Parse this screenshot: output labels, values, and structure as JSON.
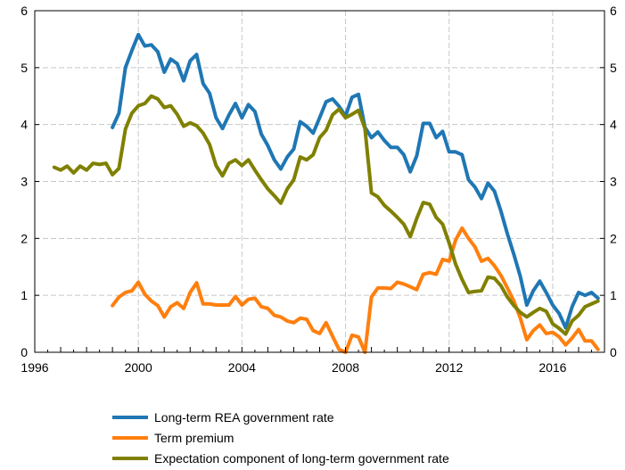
{
  "chart_data": {
    "type": "line",
    "title": "",
    "xlabel": "",
    "ylabel": "",
    "xlim": [
      1996,
      2018
    ],
    "ylim": [
      0,
      6
    ],
    "x_ticks": [
      1996,
      2000,
      2004,
      2008,
      2012,
      2016
    ],
    "x_tick_labels": [
      "1996",
      "2000",
      "2004",
      "2008",
      "2012",
      "2016"
    ],
    "y_ticks": [
      0,
      1,
      2,
      3,
      4,
      5,
      6
    ],
    "y_tick_labels": [
      "0",
      "1",
      "2",
      "3",
      "4",
      "5",
      "6"
    ],
    "grid": true,
    "legend_position": "bottom",
    "series": [
      {
        "name": "Long-term REA government rate",
        "color": "#1f77b4",
        "points": [
          [
            1999.0,
            3.95
          ],
          [
            1999.25,
            4.2
          ],
          [
            1999.5,
            5.0
          ],
          [
            1999.75,
            5.3
          ],
          [
            2000.0,
            5.58
          ],
          [
            2000.25,
            5.38
          ],
          [
            2000.5,
            5.4
          ],
          [
            2000.75,
            5.28
          ],
          [
            2001.0,
            4.92
          ],
          [
            2001.25,
            5.15
          ],
          [
            2001.5,
            5.07
          ],
          [
            2001.75,
            4.77
          ],
          [
            2002.0,
            5.12
          ],
          [
            2002.25,
            5.23
          ],
          [
            2002.5,
            4.72
          ],
          [
            2002.75,
            4.55
          ],
          [
            2003.0,
            4.12
          ],
          [
            2003.25,
            3.93
          ],
          [
            2003.5,
            4.17
          ],
          [
            2003.75,
            4.37
          ],
          [
            2004.0,
            4.12
          ],
          [
            2004.25,
            4.35
          ],
          [
            2004.5,
            4.23
          ],
          [
            2004.75,
            3.83
          ],
          [
            2005.0,
            3.63
          ],
          [
            2005.25,
            3.38
          ],
          [
            2005.5,
            3.22
          ],
          [
            2005.75,
            3.43
          ],
          [
            2006.0,
            3.57
          ],
          [
            2006.25,
            4.05
          ],
          [
            2006.5,
            3.97
          ],
          [
            2006.75,
            3.85
          ],
          [
            2007.0,
            4.12
          ],
          [
            2007.25,
            4.4
          ],
          [
            2007.5,
            4.45
          ],
          [
            2007.75,
            4.32
          ],
          [
            2008.0,
            4.15
          ],
          [
            2008.25,
            4.48
          ],
          [
            2008.5,
            4.53
          ],
          [
            2008.75,
            3.95
          ],
          [
            2009.0,
            3.77
          ],
          [
            2009.25,
            3.87
          ],
          [
            2009.5,
            3.72
          ],
          [
            2009.75,
            3.6
          ],
          [
            2010.0,
            3.6
          ],
          [
            2010.25,
            3.47
          ],
          [
            2010.5,
            3.17
          ],
          [
            2010.75,
            3.45
          ],
          [
            2011.0,
            4.02
          ],
          [
            2011.25,
            4.02
          ],
          [
            2011.5,
            3.77
          ],
          [
            2011.75,
            3.88
          ],
          [
            2012.0,
            3.52
          ],
          [
            2012.25,
            3.52
          ],
          [
            2012.5,
            3.47
          ],
          [
            2012.75,
            3.03
          ],
          [
            2013.0,
            2.9
          ],
          [
            2013.25,
            2.7
          ],
          [
            2013.5,
            2.97
          ],
          [
            2013.75,
            2.83
          ],
          [
            2014.0,
            2.48
          ],
          [
            2014.25,
            2.08
          ],
          [
            2014.5,
            1.72
          ],
          [
            2014.75,
            1.33
          ],
          [
            2015.0,
            0.83
          ],
          [
            2015.25,
            1.08
          ],
          [
            2015.5,
            1.25
          ],
          [
            2015.75,
            1.05
          ],
          [
            2016.0,
            0.83
          ],
          [
            2016.25,
            0.68
          ],
          [
            2016.5,
            0.43
          ],
          [
            2016.75,
            0.8
          ],
          [
            2017.0,
            1.05
          ],
          [
            2017.25,
            1.0
          ],
          [
            2017.5,
            1.05
          ],
          [
            2017.75,
            0.95
          ]
        ]
      },
      {
        "name": "Term premium",
        "color": "#ff7f0e",
        "points": [
          [
            1999.0,
            0.82
          ],
          [
            1999.25,
            0.97
          ],
          [
            1999.5,
            1.05
          ],
          [
            1999.75,
            1.08
          ],
          [
            2000.0,
            1.23
          ],
          [
            2000.25,
            1.02
          ],
          [
            2000.5,
            0.9
          ],
          [
            2000.75,
            0.82
          ],
          [
            2001.0,
            0.62
          ],
          [
            2001.25,
            0.8
          ],
          [
            2001.5,
            0.87
          ],
          [
            2001.75,
            0.77
          ],
          [
            2002.0,
            1.05
          ],
          [
            2002.25,
            1.22
          ],
          [
            2002.5,
            0.85
          ],
          [
            2002.75,
            0.85
          ],
          [
            2003.0,
            0.83
          ],
          [
            2003.25,
            0.83
          ],
          [
            2003.5,
            0.83
          ],
          [
            2003.75,
            0.98
          ],
          [
            2004.0,
            0.83
          ],
          [
            2004.25,
            0.93
          ],
          [
            2004.5,
            0.95
          ],
          [
            2004.75,
            0.8
          ],
          [
            2005.0,
            0.77
          ],
          [
            2005.25,
            0.65
          ],
          [
            2005.5,
            0.62
          ],
          [
            2005.75,
            0.55
          ],
          [
            2006.0,
            0.52
          ],
          [
            2006.25,
            0.6
          ],
          [
            2006.5,
            0.58
          ],
          [
            2006.75,
            0.38
          ],
          [
            2007.0,
            0.33
          ],
          [
            2007.25,
            0.52
          ],
          [
            2007.5,
            0.28
          ],
          [
            2007.75,
            0.05
          ],
          [
            2008.0,
            0.0
          ],
          [
            2008.25,
            0.3
          ],
          [
            2008.5,
            0.27
          ],
          [
            2008.75,
            0.0
          ],
          [
            2009.0,
            0.97
          ],
          [
            2009.25,
            1.13
          ],
          [
            2009.5,
            1.13
          ],
          [
            2009.75,
            1.12
          ],
          [
            2010.0,
            1.23
          ],
          [
            2010.25,
            1.2
          ],
          [
            2010.5,
            1.15
          ],
          [
            2010.75,
            1.1
          ],
          [
            2011.0,
            1.37
          ],
          [
            2011.25,
            1.4
          ],
          [
            2011.5,
            1.37
          ],
          [
            2011.75,
            1.63
          ],
          [
            2012.0,
            1.6
          ],
          [
            2012.25,
            1.97
          ],
          [
            2012.5,
            2.18
          ],
          [
            2012.75,
            2.0
          ],
          [
            2013.0,
            1.85
          ],
          [
            2013.25,
            1.6
          ],
          [
            2013.5,
            1.65
          ],
          [
            2013.75,
            1.52
          ],
          [
            2014.0,
            1.35
          ],
          [
            2014.25,
            1.13
          ],
          [
            2014.5,
            0.9
          ],
          [
            2014.75,
            0.6
          ],
          [
            2015.0,
            0.22
          ],
          [
            2015.25,
            0.38
          ],
          [
            2015.5,
            0.48
          ],
          [
            2015.75,
            0.33
          ],
          [
            2016.0,
            0.35
          ],
          [
            2016.25,
            0.27
          ],
          [
            2016.5,
            0.13
          ],
          [
            2016.75,
            0.25
          ],
          [
            2017.0,
            0.4
          ],
          [
            2017.25,
            0.2
          ],
          [
            2017.5,
            0.2
          ],
          [
            2017.75,
            0.05
          ]
        ]
      },
      {
        "name": "Expectation component of long-term government rate",
        "color": "#808000",
        "points": [
          [
            1996.75,
            3.25
          ],
          [
            1997.0,
            3.2
          ],
          [
            1997.25,
            3.27
          ],
          [
            1997.5,
            3.15
          ],
          [
            1997.75,
            3.27
          ],
          [
            1998.0,
            3.2
          ],
          [
            1998.25,
            3.32
          ],
          [
            1998.5,
            3.3
          ],
          [
            1998.75,
            3.32
          ],
          [
            1999.0,
            3.12
          ],
          [
            1999.25,
            3.23
          ],
          [
            1999.5,
            3.92
          ],
          [
            1999.75,
            4.2
          ],
          [
            2000.0,
            4.33
          ],
          [
            2000.25,
            4.37
          ],
          [
            2000.5,
            4.5
          ],
          [
            2000.75,
            4.45
          ],
          [
            2001.0,
            4.3
          ],
          [
            2001.25,
            4.33
          ],
          [
            2001.5,
            4.18
          ],
          [
            2001.75,
            3.97
          ],
          [
            2002.0,
            4.03
          ],
          [
            2002.25,
            3.98
          ],
          [
            2002.5,
            3.85
          ],
          [
            2002.75,
            3.65
          ],
          [
            2003.0,
            3.28
          ],
          [
            2003.25,
            3.1
          ],
          [
            2003.5,
            3.32
          ],
          [
            2003.75,
            3.38
          ],
          [
            2004.0,
            3.28
          ],
          [
            2004.25,
            3.38
          ],
          [
            2004.5,
            3.2
          ],
          [
            2004.75,
            3.03
          ],
          [
            2005.0,
            2.87
          ],
          [
            2005.25,
            2.75
          ],
          [
            2005.5,
            2.62
          ],
          [
            2005.75,
            2.87
          ],
          [
            2006.0,
            3.03
          ],
          [
            2006.25,
            3.43
          ],
          [
            2006.5,
            3.38
          ],
          [
            2006.75,
            3.47
          ],
          [
            2007.0,
            3.77
          ],
          [
            2007.25,
            3.9
          ],
          [
            2007.5,
            4.17
          ],
          [
            2007.75,
            4.27
          ],
          [
            2008.0,
            4.12
          ],
          [
            2008.25,
            4.18
          ],
          [
            2008.5,
            4.25
          ],
          [
            2008.75,
            3.93
          ],
          [
            2009.0,
            2.8
          ],
          [
            2009.25,
            2.73
          ],
          [
            2009.5,
            2.58
          ],
          [
            2009.75,
            2.48
          ],
          [
            2010.0,
            2.37
          ],
          [
            2010.25,
            2.25
          ],
          [
            2010.5,
            2.03
          ],
          [
            2010.75,
            2.35
          ],
          [
            2011.0,
            2.63
          ],
          [
            2011.25,
            2.6
          ],
          [
            2011.5,
            2.37
          ],
          [
            2011.75,
            2.25
          ],
          [
            2012.0,
            1.92
          ],
          [
            2012.25,
            1.55
          ],
          [
            2012.5,
            1.28
          ],
          [
            2012.75,
            1.05
          ],
          [
            2013.0,
            1.07
          ],
          [
            2013.25,
            1.08
          ],
          [
            2013.5,
            1.32
          ],
          [
            2013.75,
            1.3
          ],
          [
            2014.0,
            1.17
          ],
          [
            2014.25,
            0.97
          ],
          [
            2014.5,
            0.82
          ],
          [
            2014.75,
            0.7
          ],
          [
            2015.0,
            0.62
          ],
          [
            2015.25,
            0.7
          ],
          [
            2015.5,
            0.77
          ],
          [
            2015.75,
            0.72
          ],
          [
            2016.0,
            0.5
          ],
          [
            2016.25,
            0.42
          ],
          [
            2016.5,
            0.32
          ],
          [
            2016.75,
            0.55
          ],
          [
            2017.0,
            0.65
          ],
          [
            2017.25,
            0.8
          ],
          [
            2017.5,
            0.85
          ],
          [
            2017.75,
            0.9
          ]
        ]
      }
    ]
  }
}
